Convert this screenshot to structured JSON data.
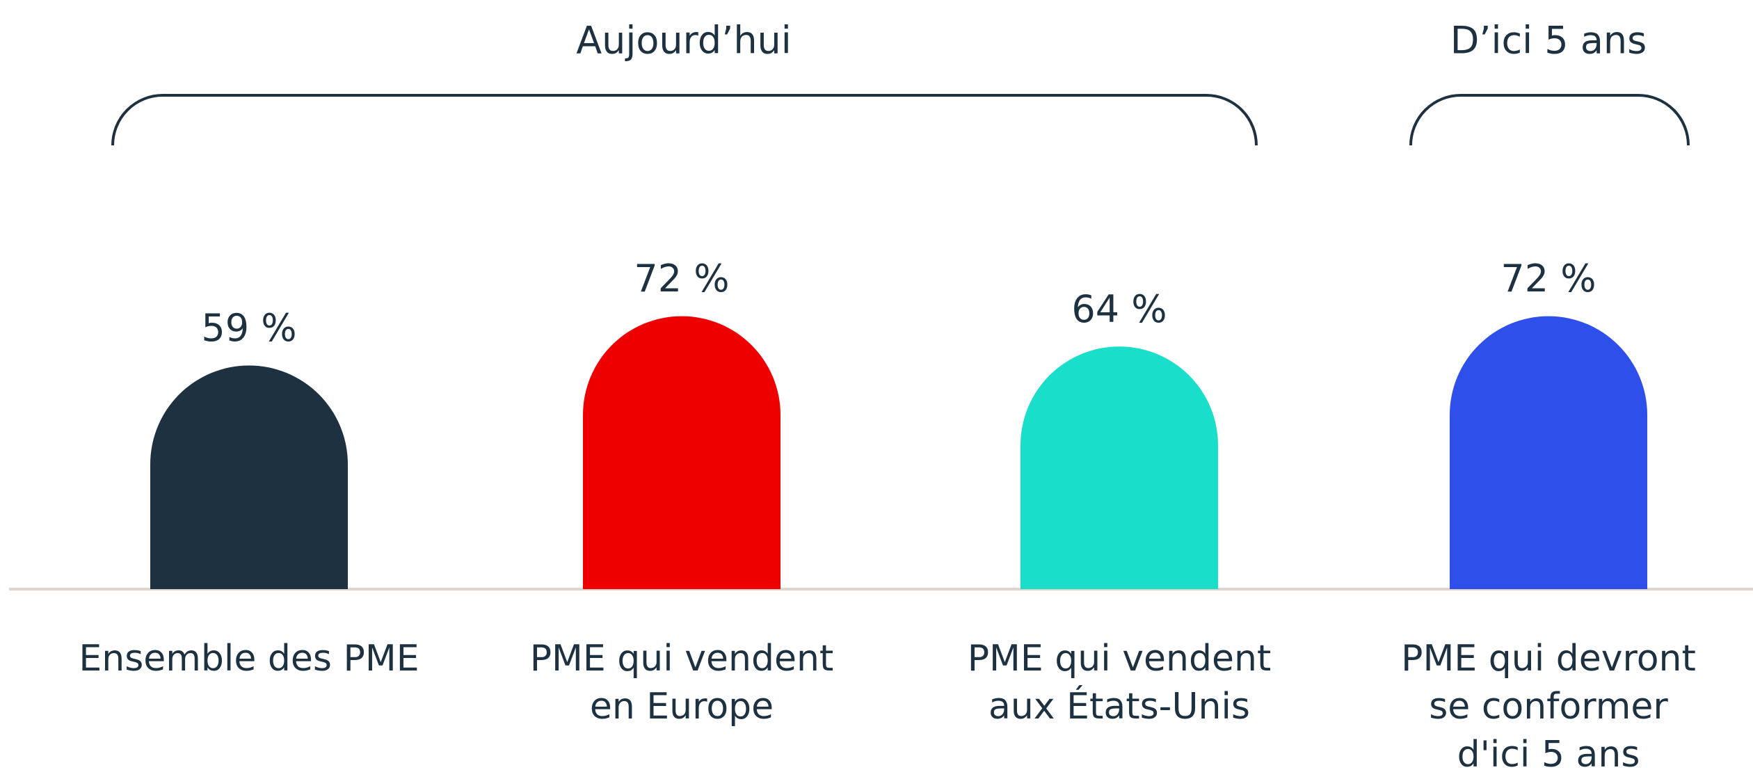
{
  "chart_data": {
    "type": "bar",
    "groups": [
      "Aujourd’hui",
      "D’ici 5 ans"
    ],
    "categories": [
      "Ensemble des PME",
      "PME qui vendent\nen Europe",
      "PME qui vendent\naux États-Unis",
      "PME qui devront\nse conformer\nd'ici 5 ans"
    ],
    "values": [
      59,
      72,
      64,
      72
    ],
    "value_labels": [
      "59 %",
      "72 %",
      "64 %",
      "72 %"
    ],
    "colors": [
      "#1e3140",
      "#ee0000",
      "#19dec9",
      "#2f4fea"
    ]
  }
}
